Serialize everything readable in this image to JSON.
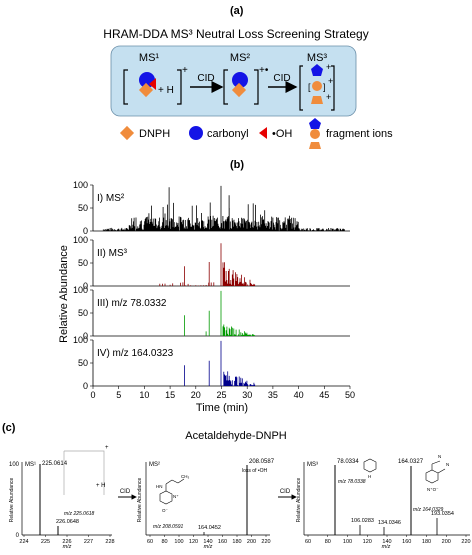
{
  "panel_a": {
    "label": "(a)",
    "title": "HRAM-DDA MS³ Neutral Loss Screening Strategy",
    "stage1": "MS¹",
    "stage2": "MS²",
    "stage3": "MS³",
    "plus_h": "+ H",
    "cid1": "CID",
    "cid2": "CID",
    "charge1": "+",
    "charge2": "+•",
    "charge3a": "+",
    "charge3b": "+",
    "charge3c": "+",
    "legend": {
      "dnph": "DNPH",
      "carbonyl": "carbonyl",
      "oh": "•OH",
      "fragments": "fragment ions"
    },
    "colors": {
      "box": "#c5e0f0",
      "dnph": "#f08c3c",
      "carbonyl": "#1414e6",
      "oh": "#e60000"
    }
  },
  "panel_b": {
    "label": "(b)",
    "ylabel": "Relative Abundance",
    "xlabel": "Time (min)",
    "xticks": [
      "0",
      "5",
      "10",
      "15",
      "20",
      "25",
      "30",
      "35",
      "40",
      "45",
      "50"
    ],
    "traces": [
      {
        "label": "I) MS²",
        "color": "#000000"
      },
      {
        "label": "II) MS³",
        "color": "#8b0000"
      },
      {
        "label": "III) m/z 78.0332",
        "color": "#009900"
      },
      {
        "label": "IV) m/z 164.0323",
        "color": "#00008b"
      }
    ],
    "yticks": [
      "0",
      "50",
      "100"
    ]
  },
  "panel_c": {
    "label": "(c)",
    "title": "Acetaldehyde-DNPH",
    "ms1": {
      "stage": "MS¹",
      "peak1": "225.0614",
      "peak2": "226.0648",
      "annotation": "m/z 225.0618",
      "xticks": [
        "224",
        "225",
        "226",
        "227",
        "228"
      ],
      "plus_h": "+ H",
      "bracket_charge": "+"
    },
    "ms2": {
      "stage": "MS²",
      "peak1": "208.0587",
      "loss": "loss of •OH",
      "annotation": "m/z 208.0591",
      "peak2": "164.0452",
      "xticks": [
        "60",
        "80",
        "100",
        "120",
        "140",
        "160",
        "180",
        "200",
        "220"
      ]
    },
    "ms3": {
      "stage": "MS³",
      "peak1": "78.0334",
      "ann1": "m/z 78.0338",
      "peak2": "164.0327",
      "ann2": "m/z 164.0329",
      "peak3": "106.0283",
      "peak4": "134.0346",
      "peak5": "193.0354",
      "xticks": [
        "60",
        "80",
        "100",
        "120",
        "140",
        "160",
        "180",
        "200",
        "220"
      ]
    },
    "cid1": "CID",
    "cid2": "CID",
    "ylabel": "Relative Abundance",
    "xlabel": "m/z",
    "ytick100": "100",
    "ytick0": "0"
  }
}
